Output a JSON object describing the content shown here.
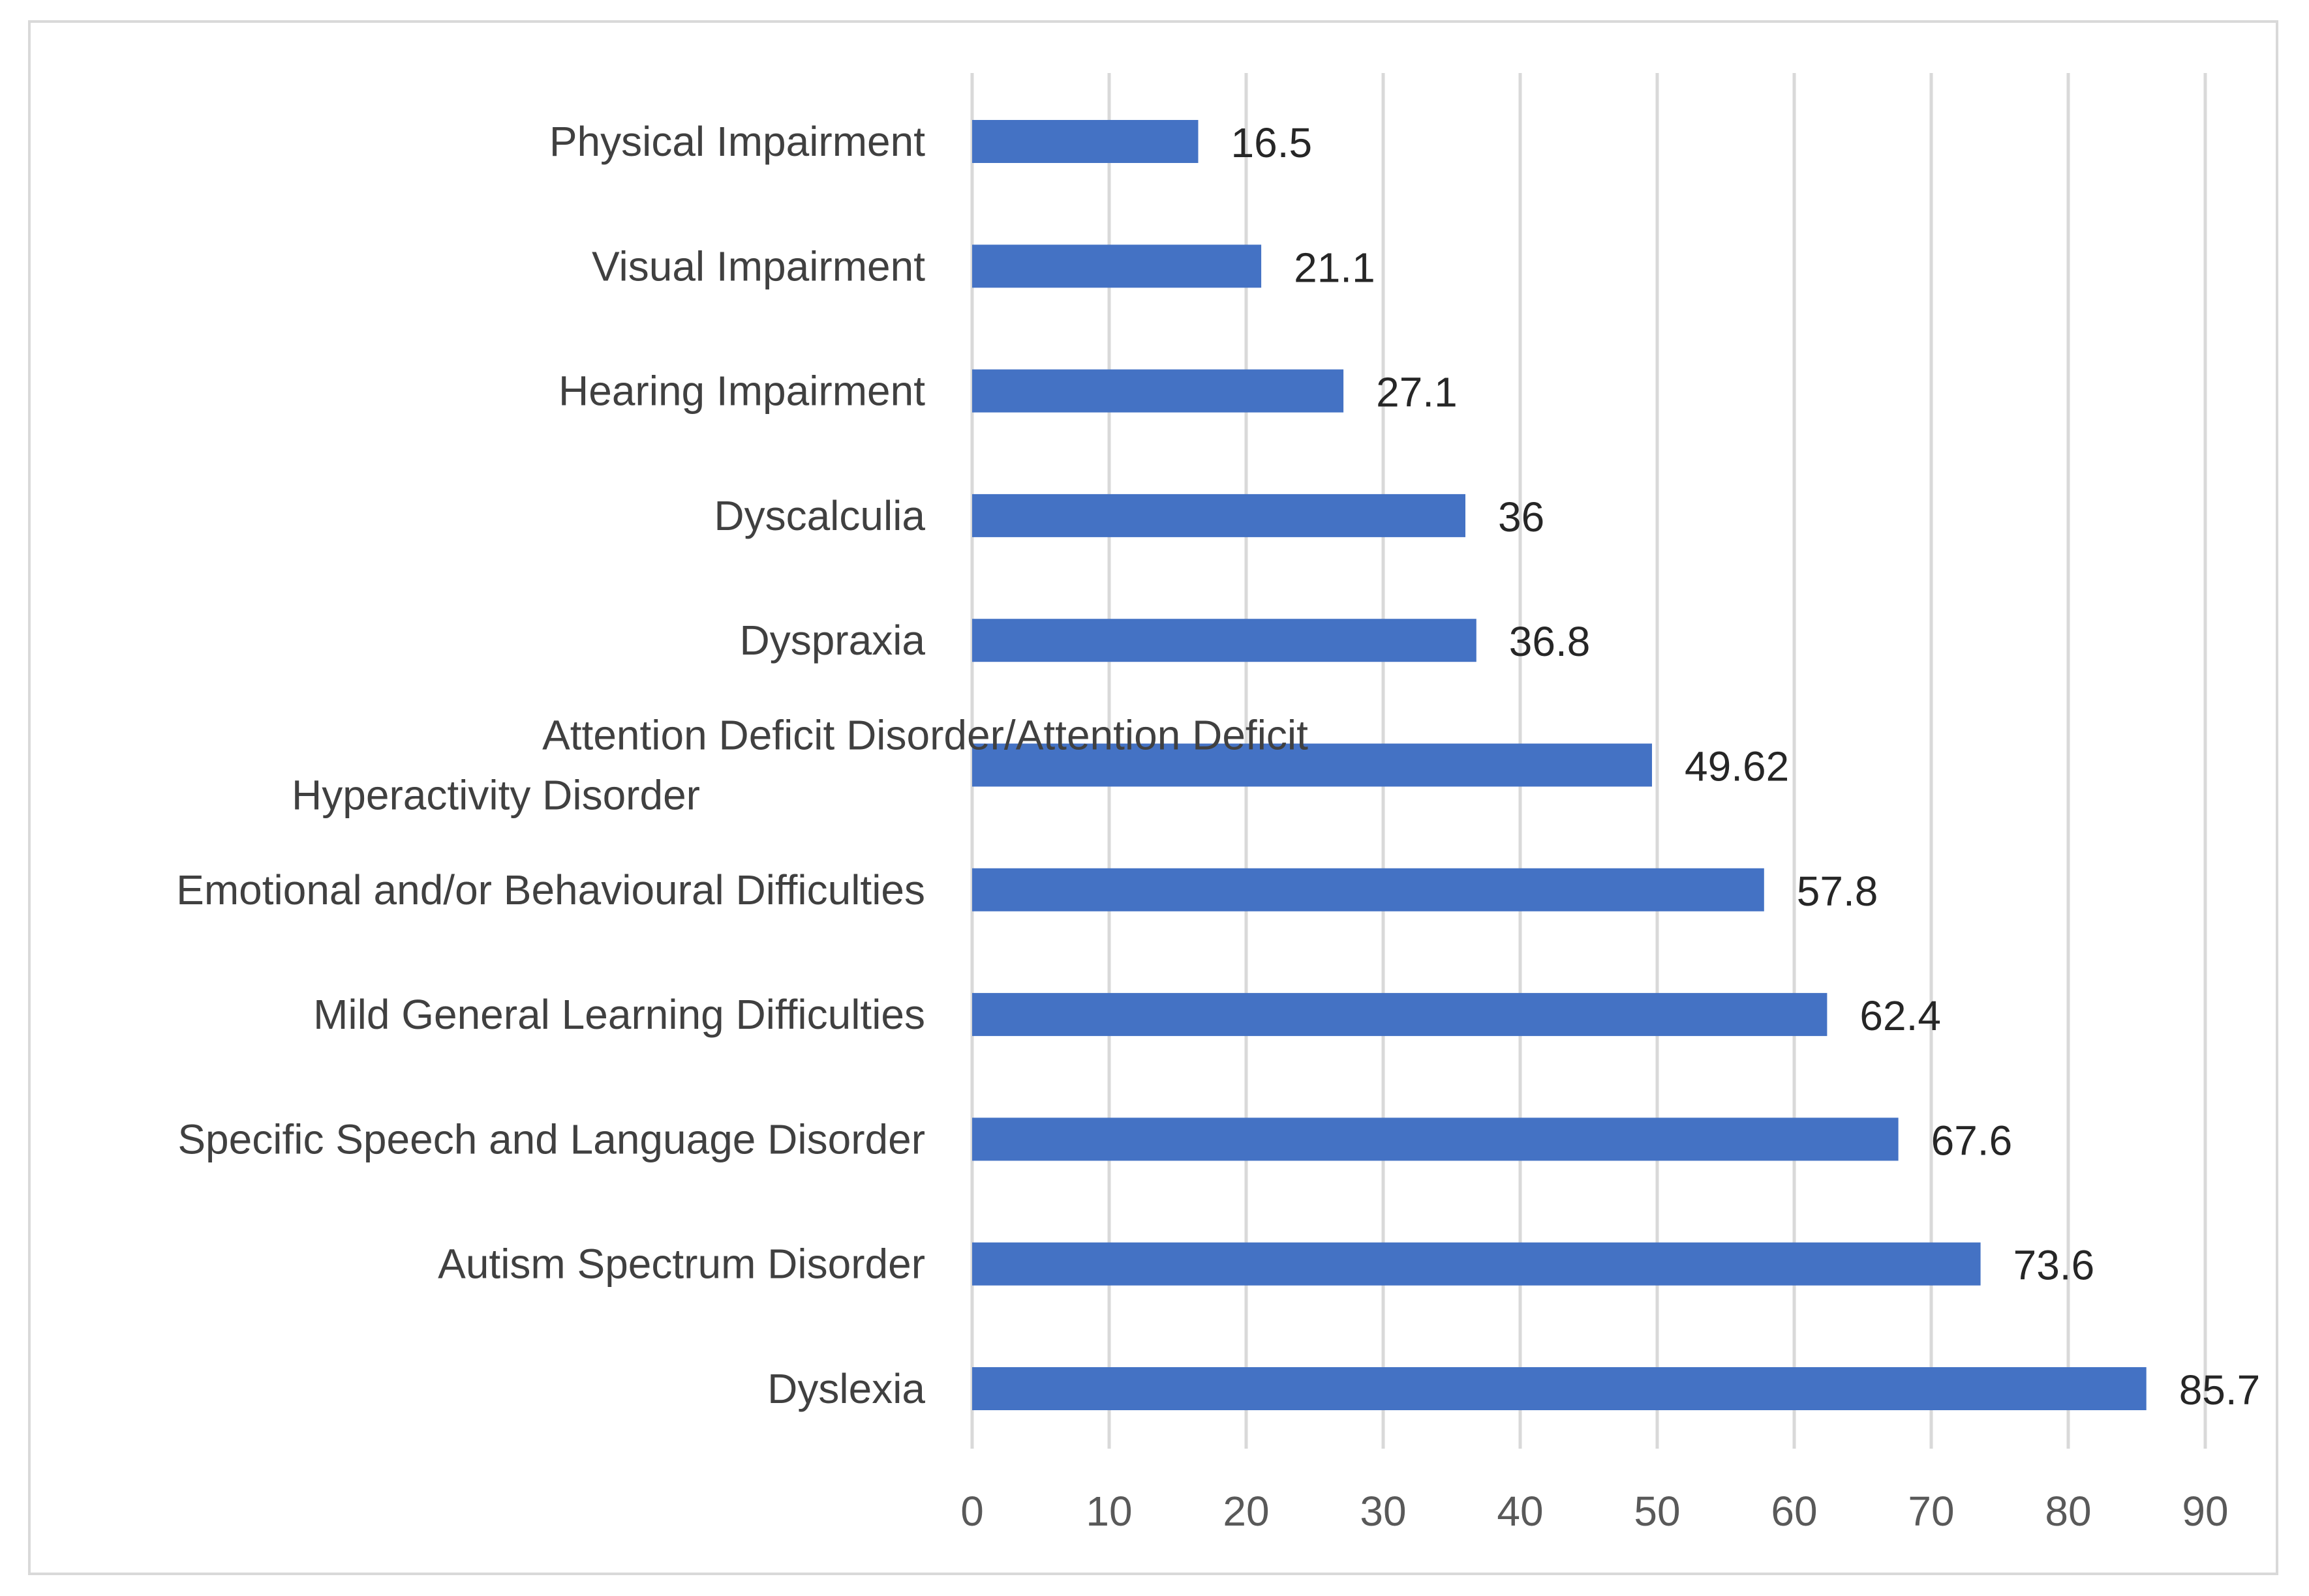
{
  "chart_data": {
    "type": "bar",
    "orientation": "horizontal",
    "title": "",
    "xlabel": "",
    "ylabel": "",
    "xlim": [
      0,
      90
    ],
    "ticks": [
      0,
      10,
      20,
      30,
      40,
      50,
      60,
      70,
      80,
      90
    ],
    "grid": "vertical",
    "bar_color": "#4472c4",
    "categories": [
      "Physical Impairment",
      "Visual Impairment",
      "Hearing Impairment",
      "Dyscalculia",
      "Dyspraxia",
      "Attention Deficit Disorder/Attention Deficit Hyperactivity Disorder",
      "Emotional and/or Behavioural Difficulties",
      "Mild General Learning Difficulties",
      "Specific Speech and Language Disorder",
      "Autism Spectrum Disorder",
      "Dyslexia"
    ],
    "category_label_lines": [
      [
        "Physical Impairment"
      ],
      [
        "Visual Impairment"
      ],
      [
        "Hearing Impairment"
      ],
      [
        "Dyscalculia"
      ],
      [
        "Dyspraxia"
      ],
      [
        "Attention Deficit Disorder/Attention Deficit",
        "Hyperactivity Disorder"
      ],
      [
        "Emotional and/or Behavioural Difficulties"
      ],
      [
        "Mild General Learning Difficulties"
      ],
      [
        "Specific Speech and Language Disorder"
      ],
      [
        "Autism Spectrum Disorder"
      ],
      [
        "Dyslexia"
      ]
    ],
    "values": [
      16.5,
      21.1,
      27.1,
      36,
      36.8,
      49.62,
      57.8,
      62.4,
      67.6,
      73.6,
      85.7
    ],
    "value_labels": [
      "16.5",
      "21.1",
      "27.1",
      "36",
      "36.8",
      "49.62",
      "57.8",
      "62.4",
      "67.6",
      "73.6",
      "85.7"
    ]
  }
}
